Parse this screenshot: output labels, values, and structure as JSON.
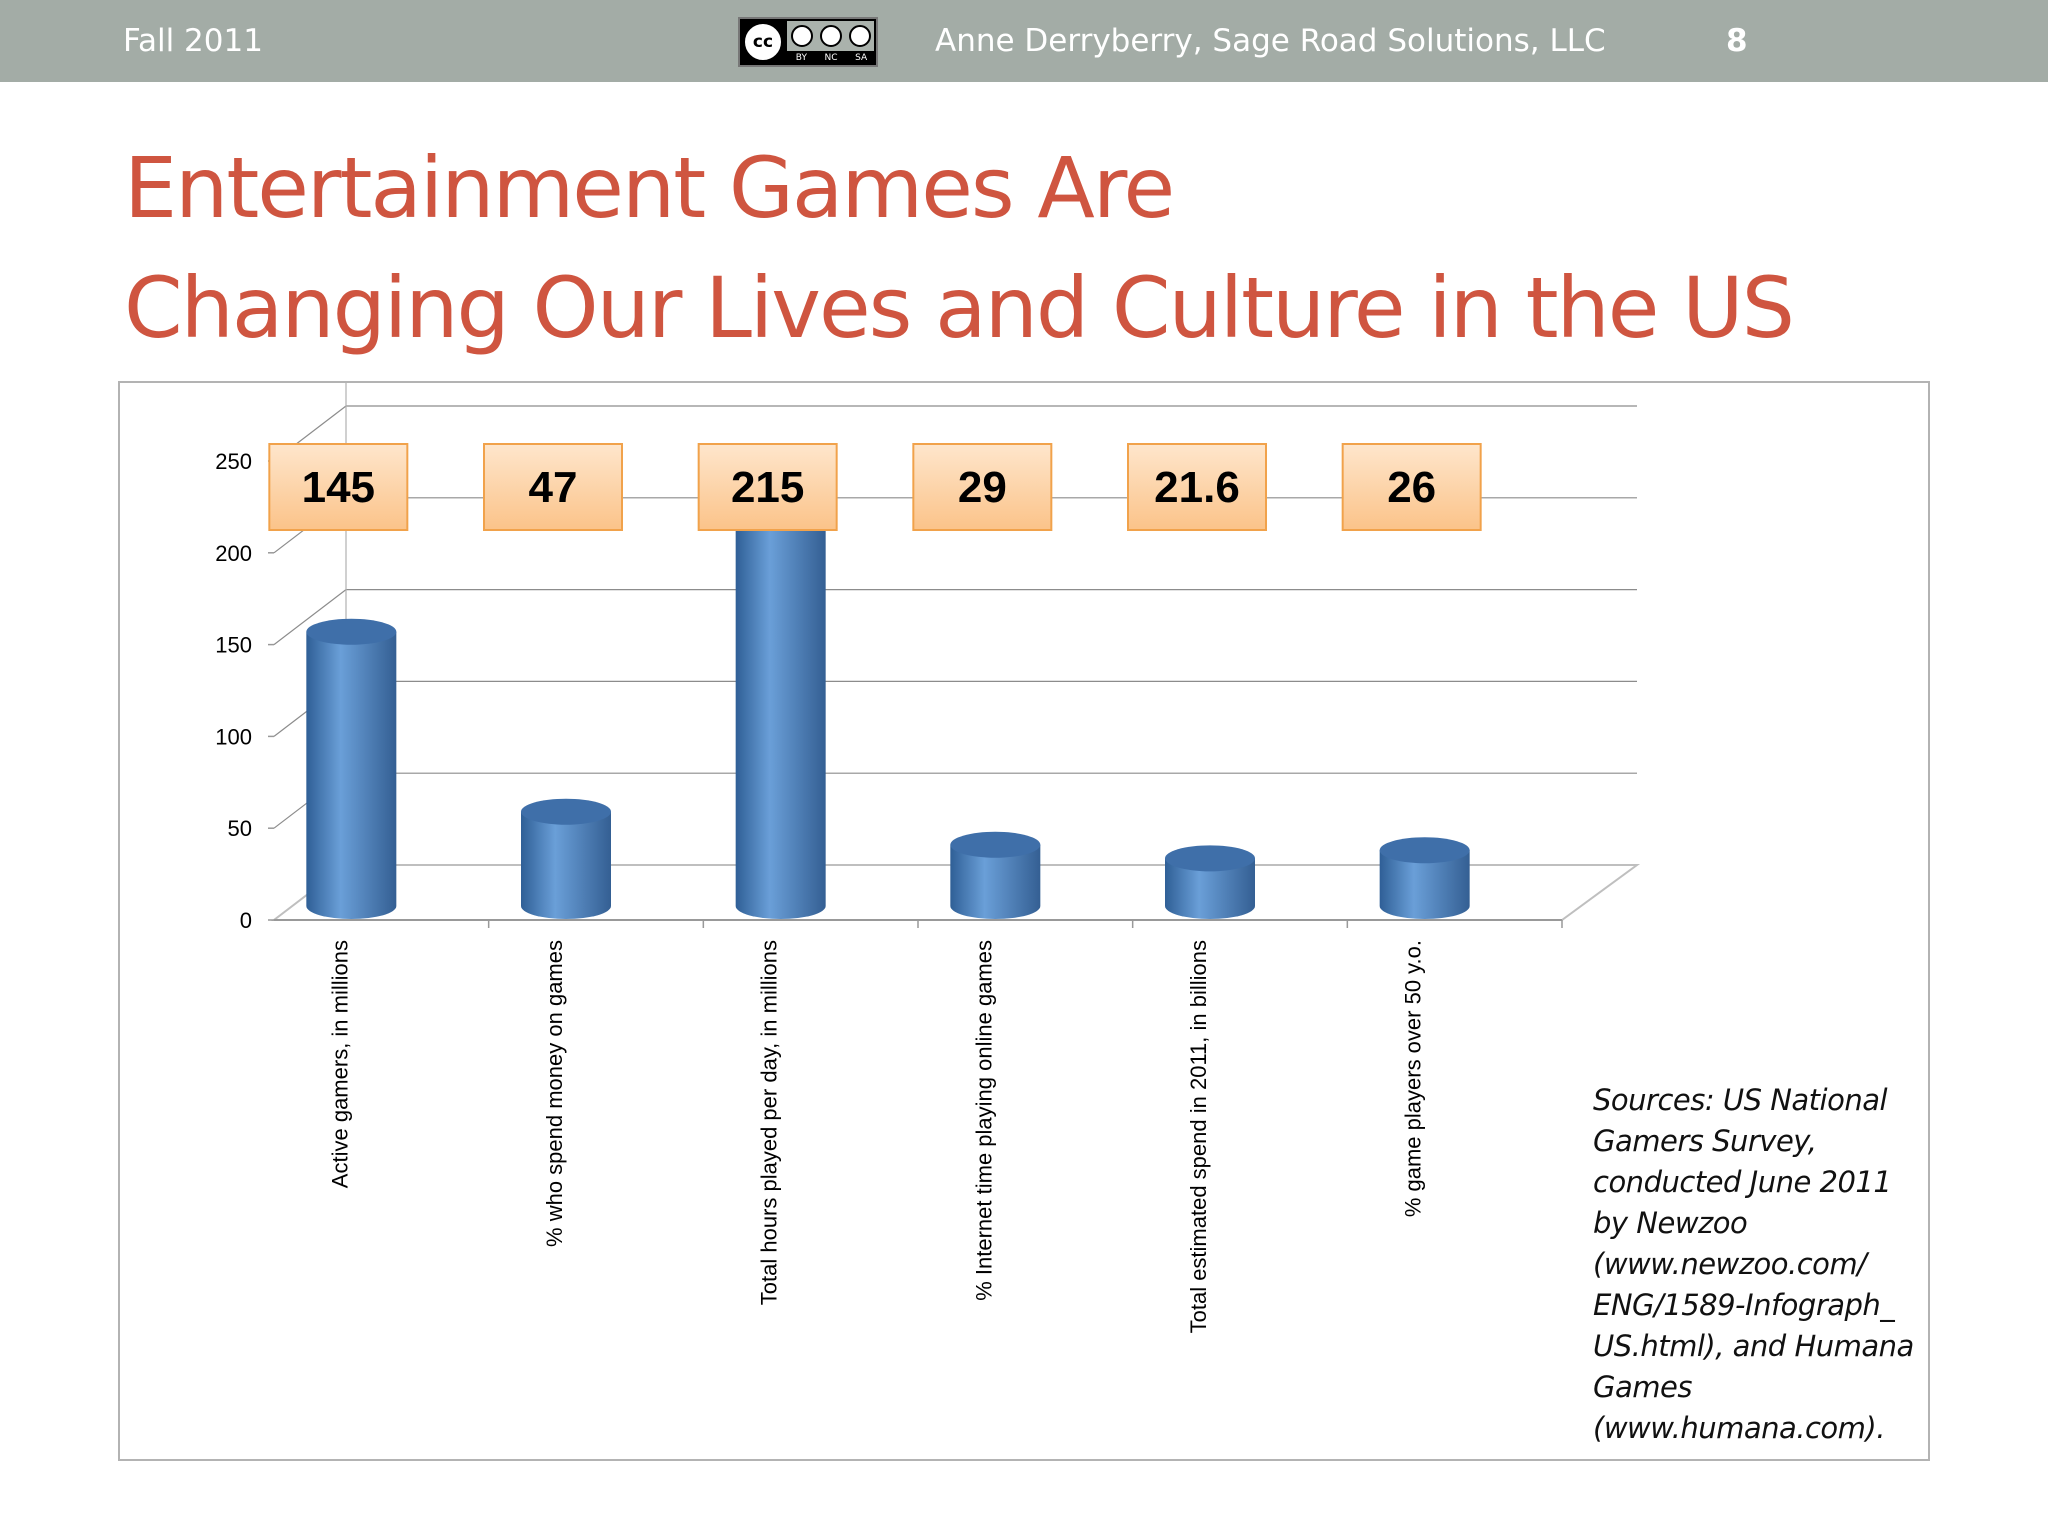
{
  "header": {
    "term": "Fall 2011",
    "license": {
      "symbol": "cc",
      "icons": [
        "by-icon",
        "nc-icon",
        "sa-icon"
      ],
      "labels": [
        "BY",
        "NC",
        "SA"
      ]
    },
    "author": "Anne Derryberry, Sage Road Solutions, LLC",
    "slide_number": "8"
  },
  "title": {
    "line1": "Entertainment Games Are",
    "line2": "Changing Our Lives and Culture in the US"
  },
  "chart_data": {
    "type": "bar",
    "style": "3d-cylinder",
    "categories": [
      "Active gamers, in millions",
      "% who spend money on games",
      "Total hours played per day, in millions",
      "% Internet time playing online games",
      "Total estimated spend in 2011, in billions",
      "% game players over 50 y.o."
    ],
    "values": [
      145,
      47,
      215,
      29,
      21.6,
      26
    ],
    "data_labels": [
      "145",
      "47",
      "215",
      "29",
      "21.6",
      "26"
    ],
    "ylim": [
      0,
      250
    ],
    "yticks": [
      0,
      50,
      100,
      150,
      200,
      250
    ],
    "ytick_labels": [
      "0",
      "50",
      "100",
      "150",
      "200",
      "250"
    ],
    "grid": true,
    "legend": "none",
    "colors": {
      "bar": "#4f81bd",
      "label_fill": "#fbcf9f",
      "label_border": "#f1a24b",
      "grid": "#8c8c8c",
      "floor": "#bfbfbf"
    }
  },
  "sources": "Sources: US National Gamers Survey, conducted June 2011 by Newzoo (www.newzoo.com/ ENG/1589-Infograph_ US.html), and Humana Games (www.humana.com)."
}
